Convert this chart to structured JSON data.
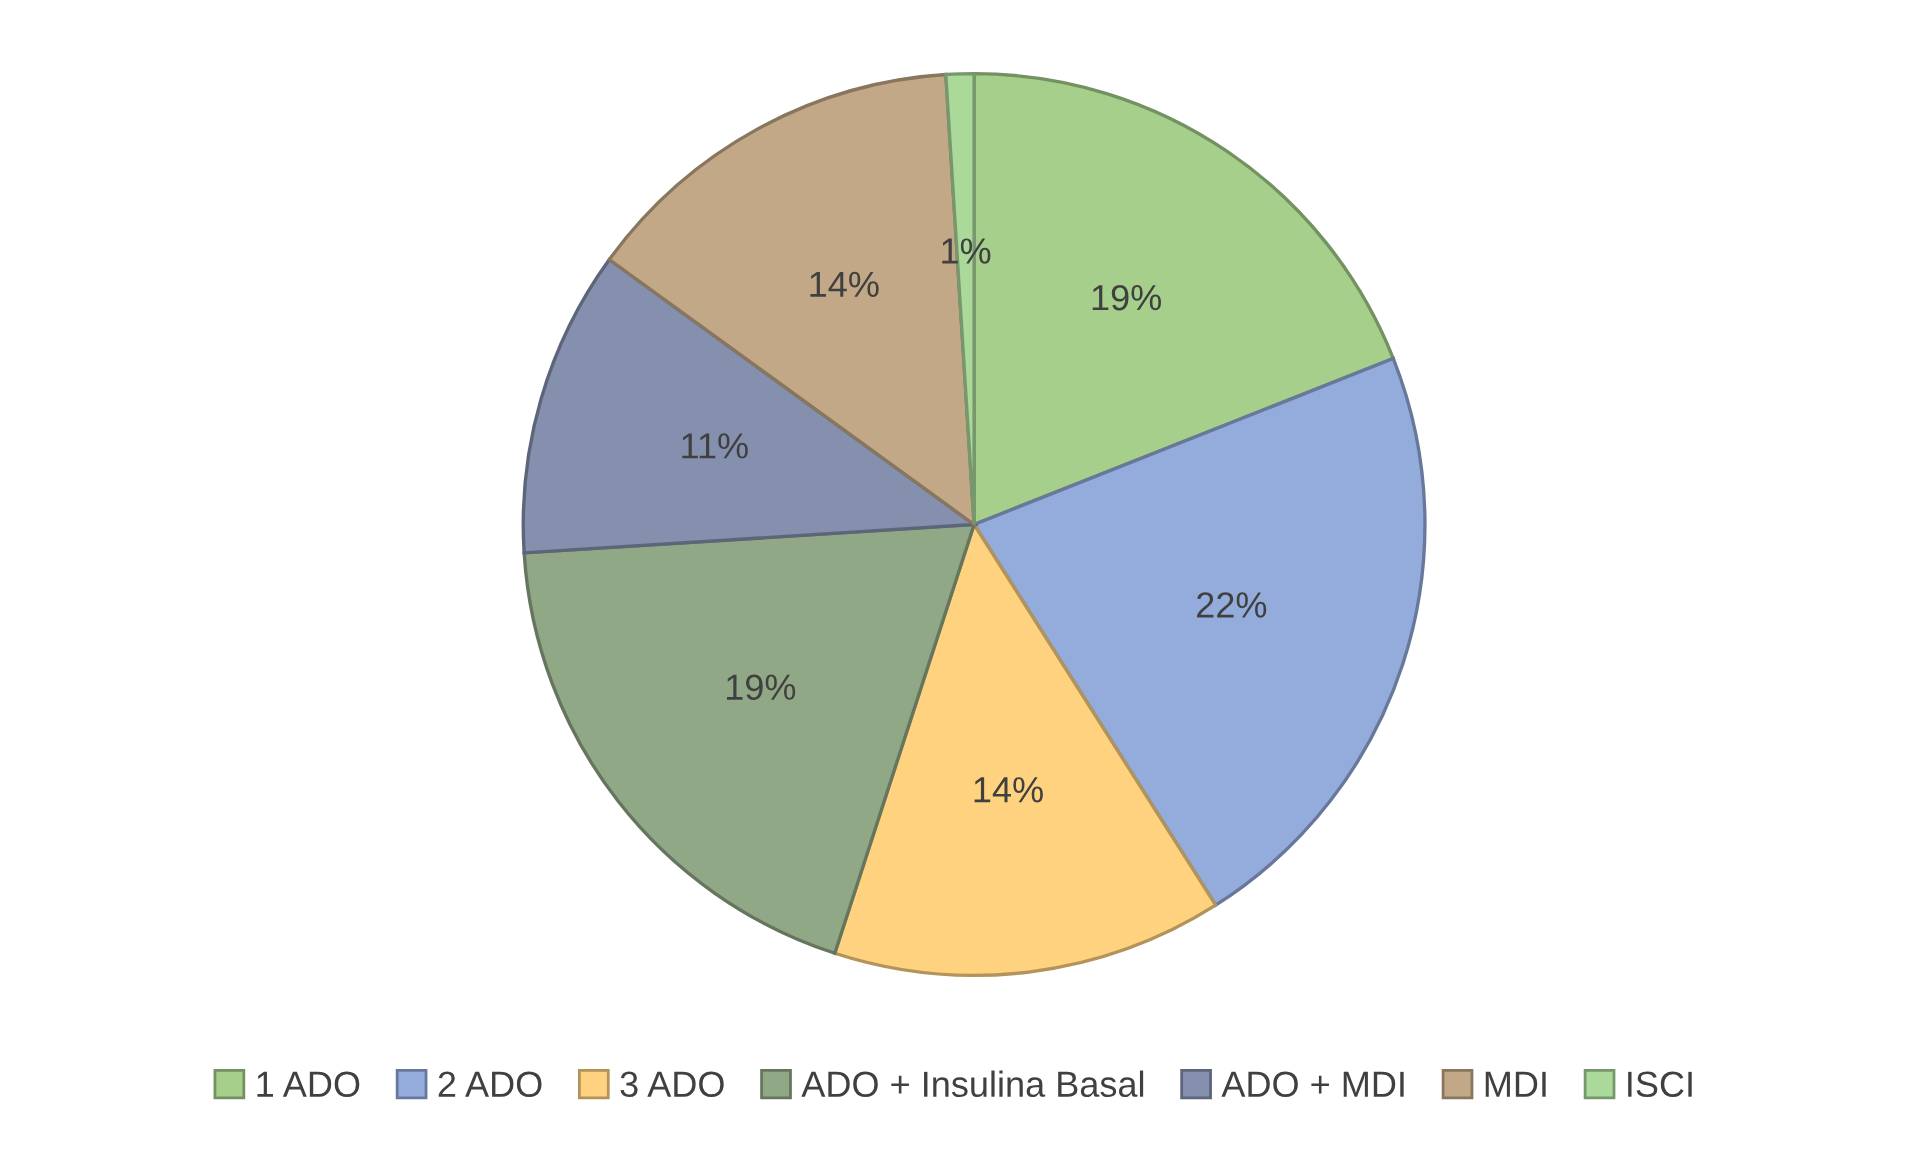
{
  "chart_data": {
    "type": "pie",
    "categories": [
      "1 ADO",
      "2 ADO",
      "3 ADO",
      "ADO + Insulina Basal",
      "ADO + MDI",
      "MDI",
      "ISCI"
    ],
    "values": [
      19,
      22,
      14,
      19,
      11,
      14,
      1
    ],
    "value_labels": [
      "19%",
      "22%",
      "14%",
      "19%",
      "11%",
      "14%",
      "1%"
    ],
    "colors": [
      "#a5cf8a",
      "#94acdc",
      "#ffd27f",
      "#91a887",
      "#8590ae",
      "#c3a887",
      "#aad99a"
    ],
    "legend": "bottom"
  }
}
